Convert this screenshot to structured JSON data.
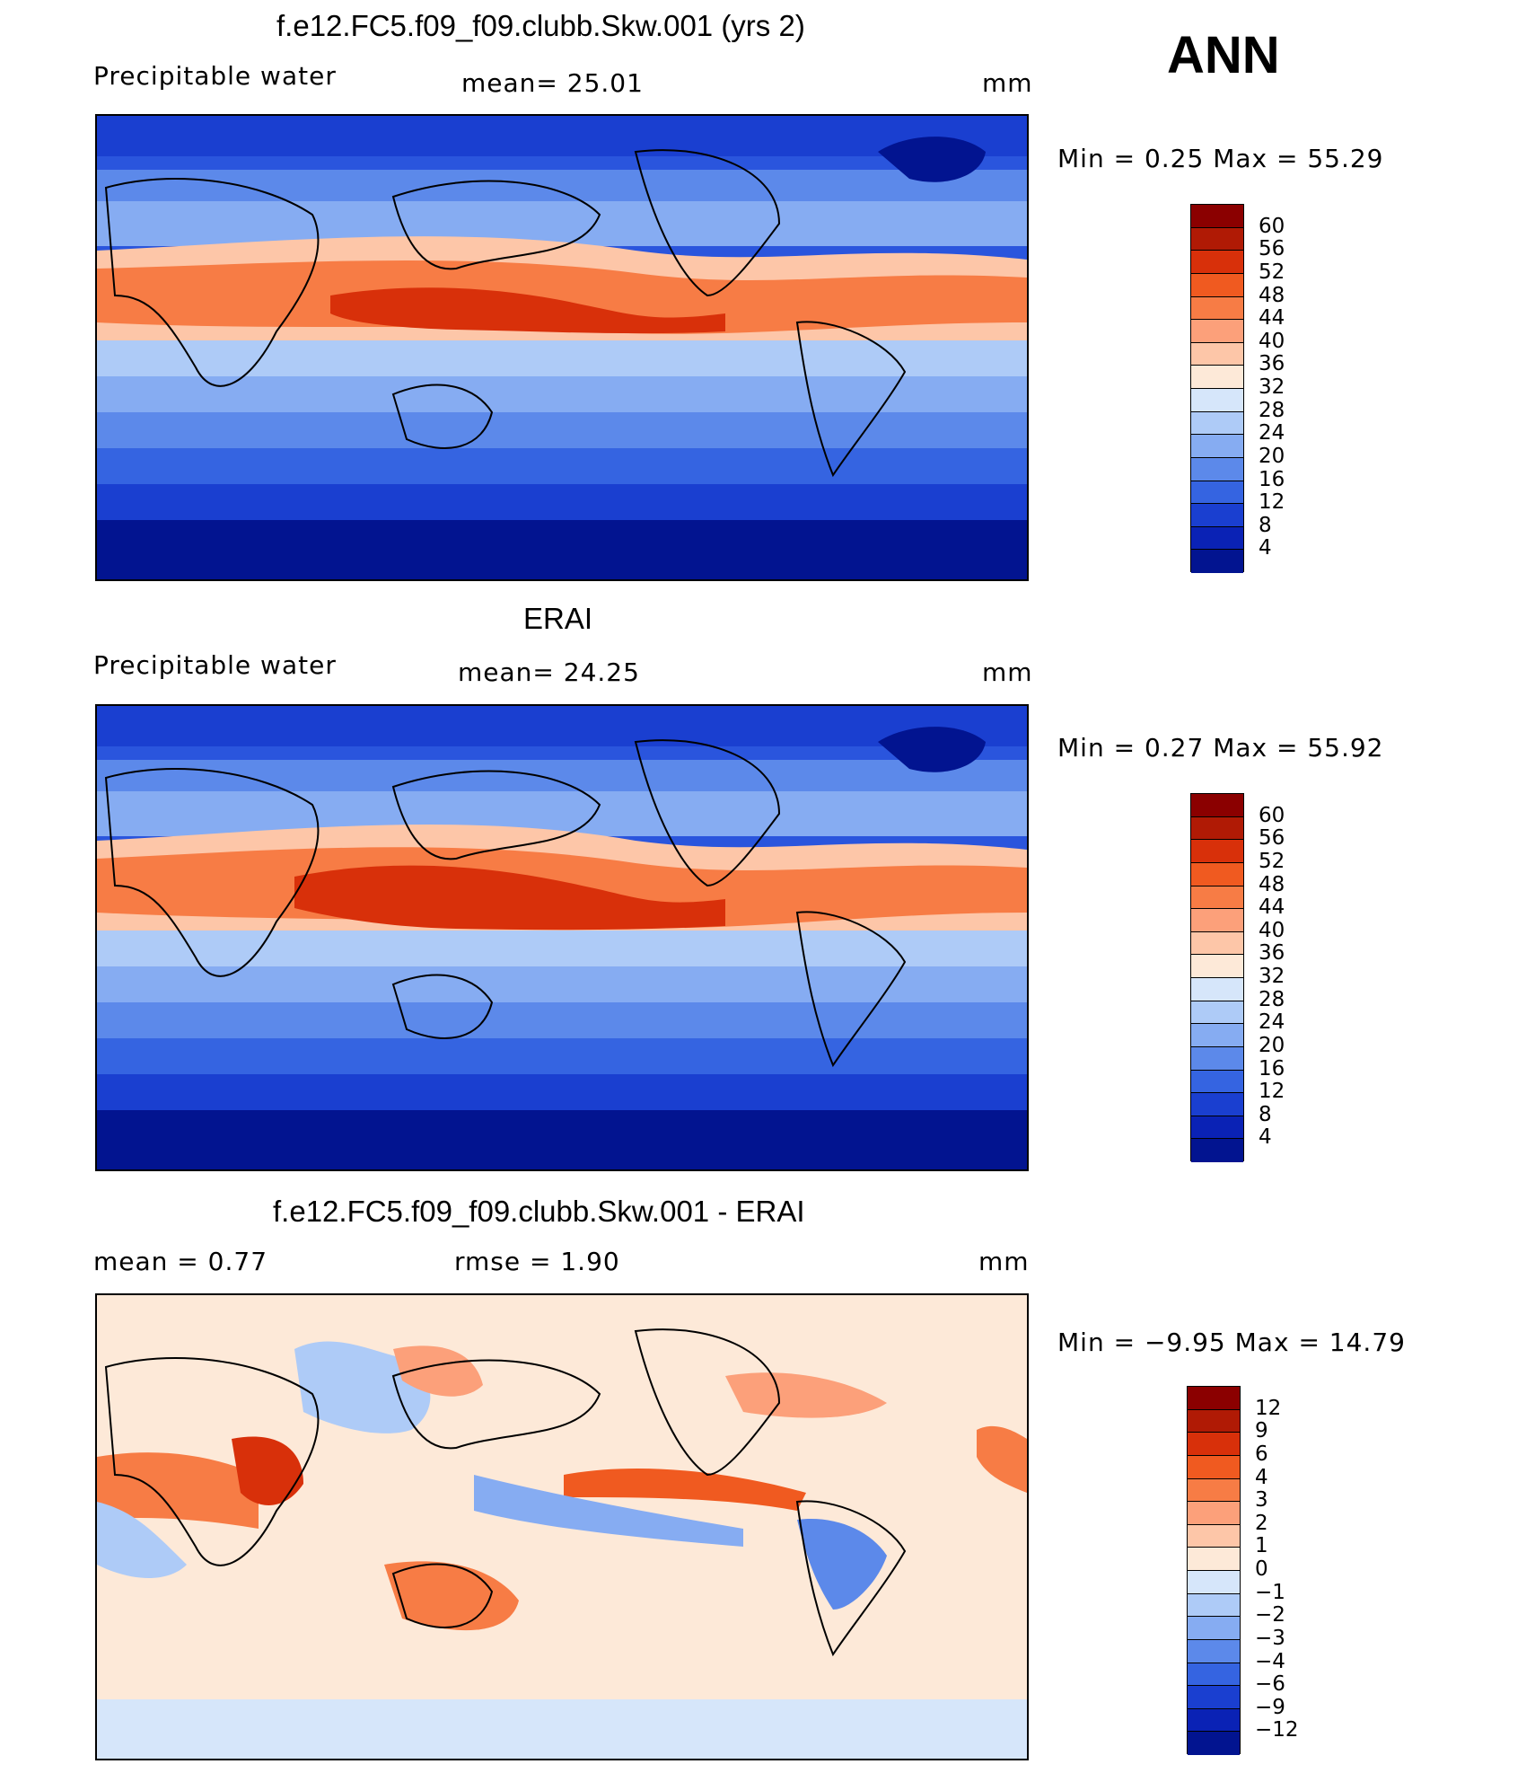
{
  "season": "ANN",
  "panels": [
    {
      "title": "f.e12.FC5.f09_f09.clubb.Skw.001 (yrs 2)",
      "left_label": "Precipitable  water",
      "center_label": "mean=   25.01",
      "units": "mm",
      "minmax": "Min  =     0.25  Max  =     55.29",
      "levels": [
        "60",
        "56",
        "52",
        "48",
        "44",
        "40",
        "36",
        "32",
        "28",
        "24",
        "20",
        "16",
        "12",
        "8",
        "4"
      ],
      "colors": [
        "#8b0000",
        "#b01a05",
        "#d8300a",
        "#f05a20",
        "#f77c45",
        "#fca07a",
        "#fdc6a8",
        "#fde9d8",
        "#d6e6fa",
        "#aecbf7",
        "#86acf2",
        "#5c89ea",
        "#3564e1",
        "#1a3fd0",
        "#0a22b5",
        "#021490"
      ]
    },
    {
      "title": "ERAI",
      "left_label": "Precipitable  water",
      "center_label": "mean=   24.25",
      "units": "mm",
      "minmax": "Min  =     0.27  Max  =     55.92",
      "levels": [
        "60",
        "56",
        "52",
        "48",
        "44",
        "40",
        "36",
        "32",
        "28",
        "24",
        "20",
        "16",
        "12",
        "8",
        "4"
      ],
      "colors": [
        "#8b0000",
        "#b01a05",
        "#d8300a",
        "#f05a20",
        "#f77c45",
        "#fca07a",
        "#fdc6a8",
        "#fde9d8",
        "#d6e6fa",
        "#aecbf7",
        "#86acf2",
        "#5c89ea",
        "#3564e1",
        "#1a3fd0",
        "#0a22b5",
        "#021490"
      ]
    },
    {
      "title": "f.e12.FC5.f09_f09.clubb.Skw.001 - ERAI",
      "left_label": "mean  =     0.77",
      "center_label": "rmse  =     1.90",
      "units": "mm",
      "minmax": "Min  =   −9.95  Max  =    14.79",
      "levels": [
        "12",
        "9",
        "6",
        "4",
        "3",
        "2",
        "1",
        "0",
        "−1",
        "−2",
        "−3",
        "−4",
        "−6",
        "−9",
        "−12"
      ],
      "colors": [
        "#8b0000",
        "#b01a05",
        "#d8300a",
        "#f05a20",
        "#f77c45",
        "#fca07a",
        "#fdc6a8",
        "#fde9d8",
        "#d6e6fa",
        "#aecbf7",
        "#86acf2",
        "#5c89ea",
        "#3564e1",
        "#1a3fd0",
        "#0a22b5",
        "#021490"
      ]
    }
  ]
}
